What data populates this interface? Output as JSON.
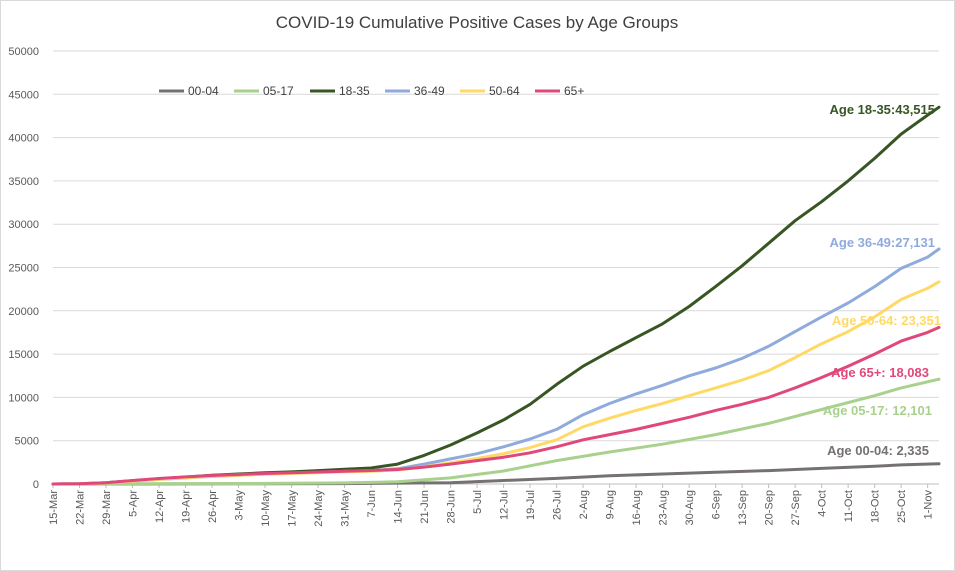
{
  "chart_data": {
    "type": "line",
    "title": "COVID-19 Cumulative Positive Cases by Age Groups",
    "xlabel": "",
    "ylabel": "",
    "ylim": [
      0,
      50000
    ],
    "yticks": [
      "0",
      "5000",
      "10000",
      "15000",
      "20000",
      "25000",
      "30000",
      "35000",
      "40000",
      "45000",
      "50000"
    ],
    "x_start": "2020-03-15",
    "x_end": "2020-11-04",
    "x_tick_labels": [
      "15-Mar",
      "22-Mar",
      "29-Mar",
      "5-Apr",
      "12-Apr",
      "19-Apr",
      "26-Apr",
      "3-May",
      "10-May",
      "17-May",
      "24-May",
      "31-May",
      "7-Jun",
      "14-Jun",
      "21-Jun",
      "28-Jun",
      "5-Jul",
      "12-Jul",
      "19-Jul",
      "26-Jul",
      "2-Aug",
      "9-Aug",
      "16-Aug",
      "23-Aug",
      "30-Aug",
      "6-Sep",
      "13-Sep",
      "20-Sep",
      "27-Sep",
      "4-Oct",
      "11-Oct",
      "18-Oct",
      "25-Oct",
      "1-Nov"
    ],
    "grid": true,
    "legend_position": "top-left",
    "series": [
      {
        "name": "00-04",
        "color": "#767171",
        "points": [
          [
            "15-Mar",
            0
          ],
          [
            "5-Apr",
            5
          ],
          [
            "3-May",
            20
          ],
          [
            "31-May",
            50
          ],
          [
            "28-Jun",
            150
          ],
          [
            "12-Jul",
            400
          ],
          [
            "26-Jul",
            650
          ],
          [
            "9-Aug",
            950
          ],
          [
            "23-Aug",
            1150
          ],
          [
            "6-Sep",
            1350
          ],
          [
            "20-Sep",
            1550
          ],
          [
            "4-Oct",
            1800
          ],
          [
            "18-Oct",
            2050
          ],
          [
            "25-Oct",
            2200
          ],
          [
            "4-Nov",
            2335
          ]
        ]
      },
      {
        "name": "05-17",
        "color": "#a9d18e",
        "points": [
          [
            "15-Mar",
            0
          ],
          [
            "5-Apr",
            20
          ],
          [
            "3-May",
            50
          ],
          [
            "31-May",
            130
          ],
          [
            "14-Jun",
            250
          ],
          [
            "28-Jun",
            700
          ],
          [
            "12-Jul",
            1500
          ],
          [
            "26-Jul",
            2700
          ],
          [
            "9-Aug",
            3700
          ],
          [
            "23-Aug",
            4600
          ],
          [
            "6-Sep",
            5700
          ],
          [
            "20-Sep",
            7000
          ],
          [
            "4-Oct",
            8600
          ],
          [
            "18-Oct",
            10200
          ],
          [
            "25-Oct",
            11100
          ],
          [
            "4-Nov",
            12101
          ]
        ]
      },
      {
        "name": "18-35",
        "color": "#375623",
        "points": [
          [
            "15-Mar",
            0
          ],
          [
            "22-Mar",
            40
          ],
          [
            "29-Mar",
            150
          ],
          [
            "5-Apr",
            380
          ],
          [
            "12-Apr",
            600
          ],
          [
            "19-Apr",
            800
          ],
          [
            "26-Apr",
            1000
          ],
          [
            "3-May",
            1150
          ],
          [
            "10-May",
            1300
          ],
          [
            "17-May",
            1400
          ],
          [
            "24-May",
            1550
          ],
          [
            "31-May",
            1700
          ],
          [
            "7-Jun",
            1850
          ],
          [
            "14-Jun",
            2300
          ],
          [
            "21-Jun",
            3300
          ],
          [
            "28-Jun",
            4500
          ],
          [
            "5-Jul",
            5900
          ],
          [
            "12-Jul",
            7400
          ],
          [
            "19-Jul",
            9200
          ],
          [
            "26-Jul",
            11500
          ],
          [
            "2-Aug",
            13600
          ],
          [
            "9-Aug",
            15300
          ],
          [
            "16-Aug",
            16900
          ],
          [
            "23-Aug",
            18500
          ],
          [
            "30-Aug",
            20500
          ],
          [
            "6-Sep",
            22800
          ],
          [
            "13-Sep",
            25200
          ],
          [
            "20-Sep",
            27800
          ],
          [
            "27-Sep",
            30400
          ],
          [
            "4-Oct",
            32600
          ],
          [
            "11-Oct",
            35000
          ],
          [
            "18-Oct",
            37600
          ],
          [
            "25-Oct",
            40400
          ],
          [
            "1-Nov",
            42600
          ],
          [
            "4-Nov",
            43515
          ]
        ]
      },
      {
        "name": "36-49",
        "color": "#8faadc",
        "points": [
          [
            "15-Mar",
            0
          ],
          [
            "22-Mar",
            30
          ],
          [
            "29-Mar",
            120
          ],
          [
            "5-Apr",
            330
          ],
          [
            "12-Apr",
            530
          ],
          [
            "19-Apr",
            700
          ],
          [
            "26-Apr",
            880
          ],
          [
            "3-May",
            1020
          ],
          [
            "10-May",
            1150
          ],
          [
            "17-May",
            1250
          ],
          [
            "24-May",
            1350
          ],
          [
            "31-May",
            1450
          ],
          [
            "7-Jun",
            1550
          ],
          [
            "14-Jun",
            1750
          ],
          [
            "21-Jun",
            2300
          ],
          [
            "28-Jun",
            2900
          ],
          [
            "5-Jul",
            3500
          ],
          [
            "12-Jul",
            4300
          ],
          [
            "19-Jul",
            5200
          ],
          [
            "26-Jul",
            6300
          ],
          [
            "2-Aug",
            8000
          ],
          [
            "9-Aug",
            9300
          ],
          [
            "16-Aug",
            10400
          ],
          [
            "23-Aug",
            11400
          ],
          [
            "30-Aug",
            12500
          ],
          [
            "6-Sep",
            13400
          ],
          [
            "13-Sep",
            14500
          ],
          [
            "20-Sep",
            15900
          ],
          [
            "27-Sep",
            17600
          ],
          [
            "4-Oct",
            19300
          ],
          [
            "11-Oct",
            20900
          ],
          [
            "18-Oct",
            22800
          ],
          [
            "25-Oct",
            24900
          ],
          [
            "1-Nov",
            26200
          ],
          [
            "4-Nov",
            27131
          ]
        ]
      },
      {
        "name": "50-64",
        "color": "#ffd966",
        "points": [
          [
            "15-Mar",
            0
          ],
          [
            "22-Mar",
            30
          ],
          [
            "29-Mar",
            120
          ],
          [
            "5-Apr",
            330
          ],
          [
            "12-Apr",
            550
          ],
          [
            "19-Apr",
            720
          ],
          [
            "26-Apr",
            900
          ],
          [
            "3-May",
            1020
          ],
          [
            "10-May",
            1130
          ],
          [
            "17-May",
            1220
          ],
          [
            "24-May",
            1310
          ],
          [
            "31-May",
            1400
          ],
          [
            "7-Jun",
            1480
          ],
          [
            "14-Jun",
            1620
          ],
          [
            "21-Jun",
            2000
          ],
          [
            "28-Jun",
            2450
          ],
          [
            "5-Jul",
            2950
          ],
          [
            "12-Jul",
            3500
          ],
          [
            "19-Jul",
            4200
          ],
          [
            "26-Jul",
            5100
          ],
          [
            "2-Aug",
            6600
          ],
          [
            "9-Aug",
            7600
          ],
          [
            "16-Aug",
            8500
          ],
          [
            "23-Aug",
            9300
          ],
          [
            "30-Aug",
            10200
          ],
          [
            "6-Sep",
            11100
          ],
          [
            "13-Sep",
            12000
          ],
          [
            "20-Sep",
            13100
          ],
          [
            "27-Sep",
            14600
          ],
          [
            "4-Oct",
            16200
          ],
          [
            "11-Oct",
            17600
          ],
          [
            "18-Oct",
            19300
          ],
          [
            "25-Oct",
            21300
          ],
          [
            "1-Nov",
            22600
          ],
          [
            "4-Nov",
            23351
          ]
        ]
      },
      {
        "name": "65+",
        "color": "#e0487a",
        "points": [
          [
            "15-Mar",
            0
          ],
          [
            "22-Mar",
            40
          ],
          [
            "29-Mar",
            150
          ],
          [
            "5-Apr",
            400
          ],
          [
            "12-Apr",
            640
          ],
          [
            "19-Apr",
            820
          ],
          [
            "26-Apr",
            980
          ],
          [
            "3-May",
            1100
          ],
          [
            "10-May",
            1210
          ],
          [
            "17-May",
            1300
          ],
          [
            "24-May",
            1390
          ],
          [
            "31-May",
            1480
          ],
          [
            "7-Jun",
            1560
          ],
          [
            "14-Jun",
            1680
          ],
          [
            "21-Jun",
            1950
          ],
          [
            "28-Jun",
            2300
          ],
          [
            "5-Jul",
            2700
          ],
          [
            "12-Jul",
            3100
          ],
          [
            "19-Jul",
            3600
          ],
          [
            "26-Jul",
            4300
          ],
          [
            "2-Aug",
            5100
          ],
          [
            "9-Aug",
            5700
          ],
          [
            "16-Aug",
            6300
          ],
          [
            "23-Aug",
            7000
          ],
          [
            "30-Aug",
            7700
          ],
          [
            "6-Sep",
            8500
          ],
          [
            "13-Sep",
            9200
          ],
          [
            "20-Sep",
            10000
          ],
          [
            "27-Sep",
            11100
          ],
          [
            "4-Oct",
            12300
          ],
          [
            "11-Oct",
            13600
          ],
          [
            "18-Oct",
            15000
          ],
          [
            "25-Oct",
            16500
          ],
          [
            "1-Nov",
            17500
          ],
          [
            "4-Nov",
            18083
          ]
        ]
      }
    ],
    "annotations": [
      {
        "text": "Age 18-35:43,515",
        "color": "#375623"
      },
      {
        "text": "Age 36-49:27,131",
        "color": "#8faadc"
      },
      {
        "text": "Age 50-64: 23,351",
        "color": "#ffd966"
      },
      {
        "text": "Age 65+: 18,083",
        "color": "#e0487a"
      },
      {
        "text": "Age 05-17: 12,101",
        "color": "#a9d18e"
      },
      {
        "text": "Age 00-04: 2,335",
        "color": "#767171"
      }
    ]
  }
}
